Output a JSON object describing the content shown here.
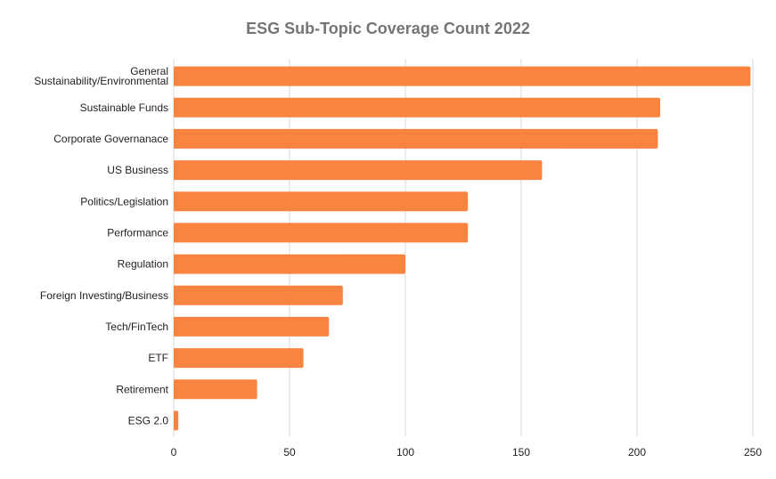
{
  "chart_data": {
    "type": "bar",
    "orientation": "horizontal",
    "title": "ESG Sub-Topic Coverage Count 2022",
    "categories": [
      [
        "General",
        "Sustainability/Environmental"
      ],
      [
        "Sustainable Funds"
      ],
      [
        "Corporate Governanace"
      ],
      [
        "US Business"
      ],
      [
        "Politics/Legislation"
      ],
      [
        "Performance"
      ],
      [
        "Regulation"
      ],
      [
        "Foreign Investing/Business"
      ],
      [
        "Tech/FinTech"
      ],
      [
        "ETF"
      ],
      [
        "Retirement"
      ],
      [
        "ESG 2.0"
      ]
    ],
    "values": [
      249,
      210,
      209,
      159,
      127,
      127,
      100,
      73,
      67,
      56,
      36,
      2
    ],
    "xlim": [
      0,
      250
    ],
    "xticks": [
      "0",
      "50",
      "100",
      "150",
      "200",
      "250"
    ],
    "xtick_values": [
      0,
      50,
      100,
      150,
      200,
      250
    ],
    "grid": "vertical",
    "bar_color": "#f98440",
    "grid_color": "#d9d9d9",
    "title_color": "#757575"
  }
}
